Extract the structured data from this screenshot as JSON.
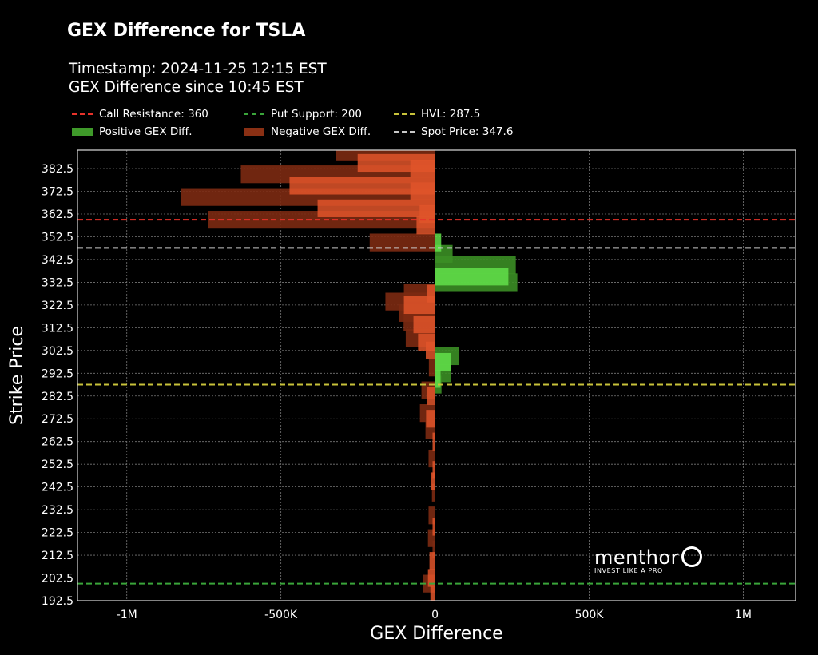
{
  "chart_data": {
    "type": "bar",
    "orientation": "horizontal",
    "title": "GEX Difference for TSLA",
    "subtitle_lines": [
      "Timestamp: 2024-11-25 12:15 EST",
      "GEX Difference since 10:45 EST"
    ],
    "xlabel": "GEX Difference",
    "ylabel": "Strike Price",
    "xlim": [
      -1160000,
      1170000
    ],
    "ylim": [
      192.5,
      390.6
    ],
    "x_ticks": [
      {
        "v": -1000000,
        "label": "-1M"
      },
      {
        "v": -500000,
        "label": "-500K"
      },
      {
        "v": 0,
        "label": "0"
      },
      {
        "v": 500000,
        "label": "500K"
      },
      {
        "v": 1000000,
        "label": "1M"
      }
    ],
    "y_ticks": [
      192.5,
      202.5,
      212.5,
      222.5,
      232.5,
      242.5,
      252.5,
      262.5,
      272.5,
      282.5,
      292.5,
      302.5,
      312.5,
      322.5,
      332.5,
      342.5,
      352.5,
      362.5,
      372.5,
      382.5
    ],
    "grid": true,
    "legend": {
      "placement": "top",
      "entries": [
        {
          "label": "Call Resistance: 360",
          "kind": "line",
          "color": "#e8322a"
        },
        {
          "label": "Put Support: 200",
          "kind": "line",
          "color": "#3aa53a"
        },
        {
          "label": "HVL: 287.5",
          "kind": "line",
          "color": "#c8c23a"
        },
        {
          "label": "Positive GEX Diff.",
          "kind": "patch",
          "color": "#3f9a2a"
        },
        {
          "label": "Negative GEX Diff.",
          "kind": "patch",
          "color": "#8a3014"
        },
        {
          "label": "Spot Price: 347.6",
          "kind": "line",
          "color": "#c8c8c8"
        }
      ]
    },
    "reference_lines": [
      {
        "name": "Call Resistance",
        "strike": 360,
        "color": "#e8322a"
      },
      {
        "name": "Put Support",
        "strike": 200,
        "color": "#3aa53a"
      },
      {
        "name": "HVL",
        "strike": 287.5,
        "color": "#c8c23a"
      },
      {
        "name": "Spot Price",
        "strike": 347.6,
        "color": "#c8c8c8"
      }
    ],
    "colors": {
      "neg_dark": "#7c2a12",
      "neg_bright": "#e0552a",
      "pos_dark": "#3b8e25",
      "pos_bright": "#62e04a"
    },
    "bars": [
      {
        "strike": 390,
        "value": -321000,
        "layer": "dark"
      },
      {
        "strike": 385,
        "value": -251000,
        "layer": "bright"
      },
      {
        "strike": 380,
        "value": -630000,
        "layer": "dark"
      },
      {
        "strike": 375,
        "value": -472000,
        "layer": "bright"
      },
      {
        "strike": 370,
        "value": -824000,
        "layer": "dark"
      },
      {
        "strike": 365,
        "value": -381000,
        "layer": "bright"
      },
      {
        "strike": 360,
        "value": -736000,
        "layer": "dark"
      },
      {
        "strike": 357.5,
        "value": -60000,
        "layer": "bright"
      },
      {
        "strike": 350,
        "value": -212000,
        "layer": "dark"
      },
      {
        "strike": 382.5,
        "value": -80000,
        "layer": "bright"
      },
      {
        "strike": 372.5,
        "value": -80000,
        "layer": "bright"
      },
      {
        "strike": 362.5,
        "value": -50000,
        "layer": "bright"
      },
      {
        "strike": 350,
        "value": 20000,
        "layer": "bright"
      },
      {
        "strike": 345,
        "value": 57000,
        "layer": "dark"
      },
      {
        "strike": 340,
        "value": 262000,
        "layer": "dark"
      },
      {
        "strike": 335,
        "value": 238000,
        "layer": "bright"
      },
      {
        "strike": 332.5,
        "value": 267000,
        "layer": "dark"
      },
      {
        "strike": 328,
        "value": -101000,
        "layer": "dark"
      },
      {
        "strike": 327.5,
        "value": -25000,
        "layer": "bright"
      },
      {
        "strike": 324,
        "value": -161000,
        "layer": "dark"
      },
      {
        "strike": 322.5,
        "value": -101000,
        "layer": "bright"
      },
      {
        "strike": 319,
        "value": -117000,
        "layer": "dark"
      },
      {
        "strike": 315,
        "value": -102000,
        "layer": "dark"
      },
      {
        "strike": 314,
        "value": -70000,
        "layer": "bright"
      },
      {
        "strike": 308,
        "value": -95000,
        "layer": "dark"
      },
      {
        "strike": 306,
        "value": -55000,
        "layer": "bright"
      },
      {
        "strike": 302.5,
        "value": -30000,
        "layer": "bright"
      },
      {
        "strike": 300,
        "value": 78000,
        "layer": "dark"
      },
      {
        "strike": 297.5,
        "value": 52000,
        "layer": "bright"
      },
      {
        "strike": 295,
        "value": -20000,
        "layer": "dark"
      },
      {
        "strike": 292.5,
        "value": 52000,
        "layer": "dark"
      },
      {
        "strike": 290,
        "value": 18000,
        "layer": "bright"
      },
      {
        "strike": 287.5,
        "value": 21000,
        "layer": "dark"
      },
      {
        "strike": 285,
        "value": -44000,
        "layer": "dark"
      },
      {
        "strike": 282.5,
        "value": -26000,
        "layer": "bright"
      },
      {
        "strike": 275,
        "value": -49000,
        "layer": "dark"
      },
      {
        "strike": 272.5,
        "value": -29000,
        "layer": "bright"
      },
      {
        "strike": 267.5,
        "value": -31000,
        "layer": "dark"
      },
      {
        "strike": 262.5,
        "value": -8000,
        "layer": "bright"
      },
      {
        "strike": 255,
        "value": -21000,
        "layer": "dark"
      },
      {
        "strike": 250,
        "value": -8000,
        "layer": "bright"
      },
      {
        "strike": 245,
        "value": -13000,
        "layer": "bright"
      },
      {
        "strike": 240,
        "value": -10000,
        "layer": "dark"
      },
      {
        "strike": 230,
        "value": -21000,
        "layer": "dark"
      },
      {
        "strike": 225,
        "value": -8000,
        "layer": "bright"
      },
      {
        "strike": 220,
        "value": -23000,
        "layer": "dark"
      },
      {
        "strike": 210,
        "value": -18000,
        "layer": "bright"
      },
      {
        "strike": 215,
        "value": -8000,
        "layer": "dark"
      },
      {
        "strike": 200,
        "value": -39000,
        "layer": "dark"
      },
      {
        "strike": 202.5,
        "value": -23000,
        "layer": "bright"
      },
      {
        "strike": 195,
        "value": -15000,
        "layer": "bright"
      }
    ]
  },
  "logo": {
    "wordmark": "menthorQ",
    "tagline": "INVEST LIKE A PRO"
  }
}
